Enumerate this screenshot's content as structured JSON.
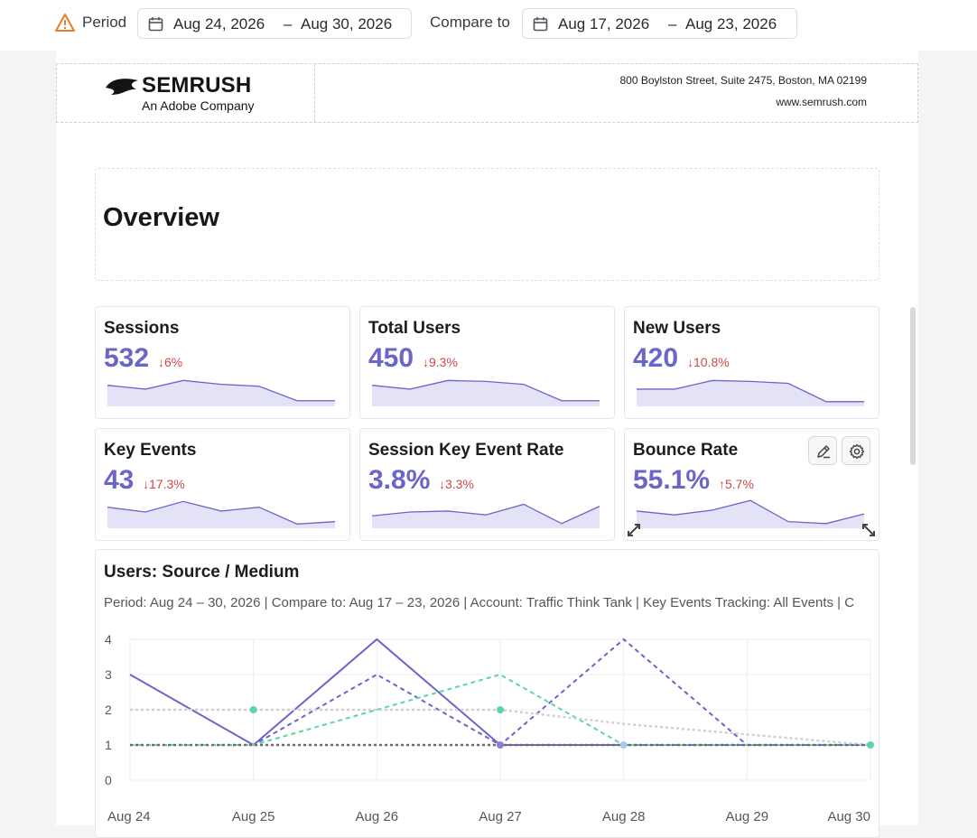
{
  "toolbar": {
    "period_label": "Period",
    "period_start": "Aug 24, 2026",
    "period_end": "Aug 30, 2026",
    "compare_label": "Compare to",
    "compare_start": "Aug 17, 2026",
    "compare_end": "Aug 23, 2026",
    "dash": "–",
    "warning_icon": "warning-icon",
    "calendar_icon": "calendar-icon"
  },
  "letterhead": {
    "brand": "SEMRUSH",
    "brand_sub": "An Adobe Company",
    "address": "800 Boylston Street, Suite 2475, Boston, MA 02199",
    "website": "www.semrush.com"
  },
  "overview": {
    "title": "Overview"
  },
  "colors": {
    "accent": "#6a66c9",
    "negative": "#d04848",
    "spark_fill": "#e3e2f6"
  },
  "metrics": [
    {
      "title": "Sessions",
      "value": "532",
      "delta": "↓6%",
      "trend": [
        4,
        3.2,
        5,
        4.2,
        3.8,
        0.8,
        0.8
      ]
    },
    {
      "title": "Total Users",
      "value": "450",
      "delta": "↓9.3%",
      "trend": [
        4,
        3.2,
        5,
        4.8,
        4.2,
        0.8,
        0.8
      ]
    },
    {
      "title": "New Users",
      "value": "420",
      "delta": "↓10.8%",
      "trend": [
        3.2,
        3.2,
        5,
        4.8,
        4.4,
        0.6,
        0.6
      ]
    },
    {
      "title": "Key Events",
      "value": "43",
      "delta": "↓17.3%",
      "trend": [
        4,
        3,
        5.2,
        3.2,
        4,
        0.5,
        1
      ]
    },
    {
      "title": "Session Key Event Rate",
      "value": "3.8%",
      "delta": "↓3.3%",
      "trend": [
        2.2,
        3,
        3.2,
        2.4,
        4.6,
        0.6,
        4.2
      ]
    },
    {
      "title": "Bounce Rate",
      "value": "55.1%",
      "delta": "↑5.7%",
      "trend": [
        3.2,
        2.4,
        3.4,
        5.4,
        1,
        0.6,
        2.6
      ]
    }
  ],
  "card_tools": {
    "edit_icon": "pencil-icon",
    "settings_icon": "gear-icon",
    "resize_icon": "resize-icon"
  },
  "chart": {
    "title": "Users: Source / Medium",
    "subtitle": "Period: Aug 24 – 30, 2026 | Compare to: Aug 17 – 23, 2026 | Account: Traffic Think Tank | Key Events Tracking: All Events | C"
  },
  "chart_data": {
    "type": "line",
    "x": [
      "Aug 24",
      "Aug 25",
      "Aug 26",
      "Aug 27",
      "Aug 28",
      "Aug 29",
      "Aug 30"
    ],
    "ylim": [
      0,
      4
    ],
    "yticks": [
      "0",
      "1",
      "2",
      "3",
      "4"
    ],
    "grid": true,
    "series": [
      {
        "values": [
          3,
          1,
          4,
          1,
          1,
          1,
          1
        ],
        "color": "#6a66c9",
        "style": "solid"
      },
      {
        "values": [
          1,
          1,
          3,
          1,
          4,
          1,
          1
        ],
        "color": "#6a66c9",
        "style": "dashed"
      },
      {
        "values": [
          1,
          1,
          2,
          3,
          1,
          1,
          1
        ],
        "color": "#5fd4a4",
        "style": "dashed"
      },
      {
        "values": [
          2,
          2,
          2,
          2,
          1.6,
          1.3,
          1
        ],
        "color": "#cfcfd4",
        "style": "dotted"
      },
      {
        "values": [
          1,
          1,
          1,
          1,
          1,
          1,
          1
        ],
        "color": "#6b6b70",
        "style": "dotted"
      }
    ]
  }
}
